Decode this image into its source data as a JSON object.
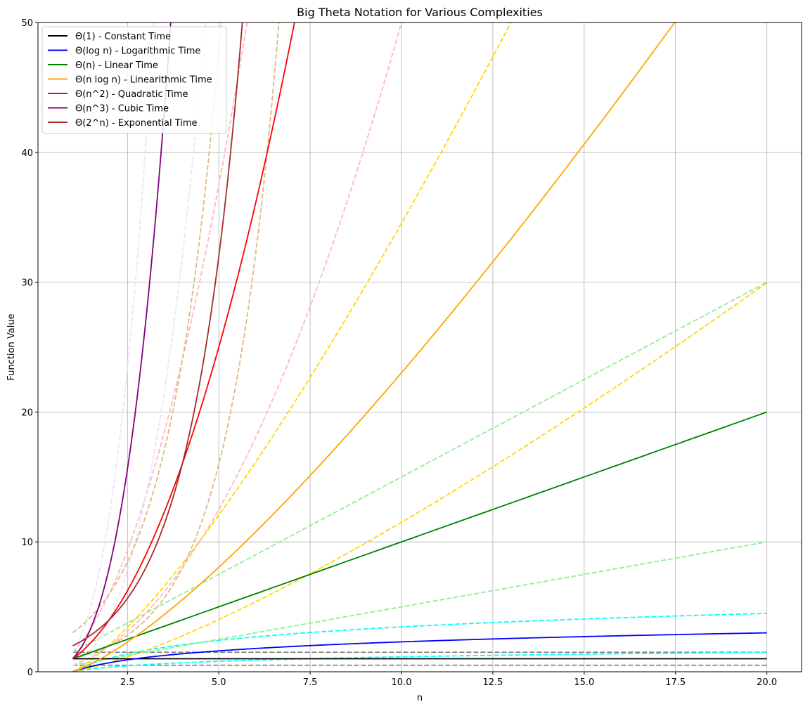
{
  "chart_data": {
    "type": "line",
    "title": "Big Theta Notation for Various Complexities",
    "xlabel": "n",
    "ylabel": "Function Value",
    "xlim": [
      0.05,
      20.95
    ],
    "ylim": [
      0,
      50
    ],
    "grid": true,
    "legend_position": "top-left",
    "x_ticks": [
      2.5,
      5.0,
      7.5,
      10.0,
      12.5,
      15.0,
      17.5,
      20.0
    ],
    "x_tick_labels": [
      "2.5",
      "5.0",
      "7.5",
      "10.0",
      "12.5",
      "15.0",
      "17.5",
      "20.0"
    ],
    "y_ticks": [
      0,
      10,
      20,
      30,
      40,
      50
    ],
    "y_tick_labels": [
      "0",
      "10",
      "20",
      "30",
      "40",
      "50"
    ],
    "x_domain": [
      1,
      20
    ],
    "series": [
      {
        "name": "Θ(1) - Constant Time",
        "color": "#000000",
        "style": "solid",
        "fn": "const",
        "coef": 1,
        "in_legend": true
      },
      {
        "name": "Θ(log n) - Logarithmic Time",
        "color": "#0000ff",
        "style": "solid",
        "fn": "log",
        "coef": 1,
        "in_legend": true
      },
      {
        "name": "Θ(n) - Linear Time",
        "color": "#008000",
        "style": "solid",
        "fn": "linear",
        "coef": 1,
        "in_legend": true
      },
      {
        "name": "Θ(n log n) - Linearithmic Time",
        "color": "#ffa500",
        "style": "solid",
        "fn": "nlogn",
        "coef": 1,
        "in_legend": true
      },
      {
        "name": "Θ(n^2) - Quadratic Time",
        "color": "#ff0000",
        "style": "solid",
        "fn": "quad",
        "coef": 1,
        "in_legend": true
      },
      {
        "name": "Θ(n^3) - Cubic Time",
        "color": "#800080",
        "style": "solid",
        "fn": "cubic",
        "coef": 1,
        "in_legend": true
      },
      {
        "name": "Θ(2^n) - Exponential Time",
        "color": "#a52a2a",
        "style": "solid",
        "fn": "exp2",
        "coef": 1,
        "in_legend": true
      },
      {
        "color": "#808080",
        "style": "dashed",
        "fn": "const",
        "coef": 0.5,
        "in_legend": false
      },
      {
        "color": "#808080",
        "style": "dashed",
        "fn": "const",
        "coef": 1.5,
        "in_legend": false
      },
      {
        "color": "#00ffff",
        "style": "dashed",
        "fn": "log",
        "coef": 0.5,
        "in_legend": false
      },
      {
        "color": "#00ffff",
        "style": "dashed",
        "fn": "log",
        "coef": 1.5,
        "in_legend": false
      },
      {
        "color": "#90ee90",
        "style": "dashed",
        "fn": "linear",
        "coef": 0.5,
        "in_legend": false
      },
      {
        "color": "#90ee90",
        "style": "dashed",
        "fn": "linear",
        "coef": 1.5,
        "in_legend": false
      },
      {
        "color": "#ffd700",
        "style": "dashed",
        "fn": "nlogn",
        "coef": 0.5,
        "in_legend": false
      },
      {
        "color": "#ffd700",
        "style": "dashed",
        "fn": "nlogn",
        "coef": 1.5,
        "in_legend": false
      },
      {
        "color": "#ffb6c1",
        "style": "dashed",
        "fn": "quad",
        "coef": 0.5,
        "in_legend": false
      },
      {
        "color": "#ffb6c1",
        "style": "dashed",
        "fn": "quad",
        "coef": 1.5,
        "in_legend": false
      },
      {
        "color": "#e6e6fa",
        "style": "dashed",
        "fn": "cubic",
        "coef": 0.5,
        "in_legend": false
      },
      {
        "color": "#e6e6fa",
        "style": "dashed",
        "fn": "cubic",
        "coef": 1.5,
        "in_legend": false
      },
      {
        "color": "#deb887",
        "style": "dashed",
        "fn": "exp2",
        "coef": 0.5,
        "in_legend": false
      },
      {
        "color": "#deb887",
        "style": "dashed",
        "fn": "exp2",
        "coef": 1.5,
        "in_legend": false
      }
    ]
  }
}
